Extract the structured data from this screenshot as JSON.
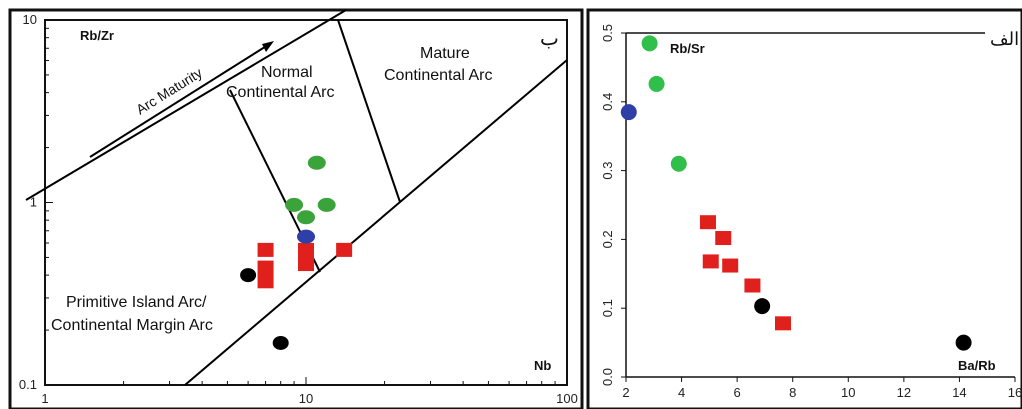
{
  "colors": {
    "red": "#e0201c",
    "green": "#3aa43a",
    "green_light": "#2fbf4a",
    "blue": "#2e3fa8",
    "black": "#000000",
    "frame": "#111111"
  },
  "chart_data": [
    {
      "type": "scatter",
      "panel_label": "ب",
      "x_scale": "log",
      "y_scale": "log",
      "xlim": [
        1,
        100
      ],
      "ylim": [
        0.1,
        10
      ],
      "xlabel": "Nb",
      "ylabel": "Rb/Zr",
      "x_tick_labels": [
        "1",
        "10",
        "100"
      ],
      "y_tick_labels": [
        "0.1",
        "1",
        "10"
      ],
      "field_labels": {
        "normal_1": "Normal",
        "normal_2": "Continental Arc",
        "mature_1": "Mature",
        "mature_2": "Continental Arc",
        "primitive_1": "Primitive Island Arc/",
        "primitive_2": "Continental Margin Arc",
        "arrow": "Arc Maturity"
      },
      "series": [
        {
          "marker": "square",
          "color": "red",
          "points": [
            [
              7,
              0.55
            ],
            [
              7,
              0.44
            ],
            [
              7,
              0.37
            ],
            [
              10,
              0.55
            ],
            [
              10,
              0.5
            ],
            [
              10,
              0.46
            ],
            [
              14,
              0.55
            ]
          ]
        },
        {
          "marker": "ellipse",
          "color": "green",
          "points": [
            [
              11,
              1.65
            ],
            [
              9,
              0.97
            ],
            [
              10,
              0.83
            ],
            [
              12,
              0.97
            ]
          ]
        },
        {
          "marker": "ellipse",
          "color": "blue",
          "points": [
            [
              10,
              0.65
            ]
          ]
        },
        {
          "marker": "circle",
          "color": "black",
          "points": [
            [
              6,
              0.4
            ],
            [
              8,
              0.17
            ]
          ]
        }
      ]
    },
    {
      "type": "scatter",
      "panel_label": "الف",
      "xlim": [
        2,
        16
      ],
      "ylim": [
        0,
        0.5
      ],
      "xlabel": "Ba/Rb",
      "ylabel": "Rb/Sr",
      "x_ticks": [
        2,
        4,
        6,
        8,
        10,
        12,
        14,
        16
      ],
      "y_ticks": [
        0.0,
        0.1,
        0.2,
        0.3,
        0.4,
        0.5
      ],
      "x_tick_labels": [
        "2",
        "4",
        "6",
        "8",
        "10",
        "12",
        "14",
        "16"
      ],
      "y_tick_labels": [
        "0.0",
        "0.1",
        "0.2",
        "0.3",
        "0.4",
        "0.5"
      ],
      "series": [
        {
          "marker": "square",
          "color": "red",
          "points": [
            [
              4.95,
              0.225
            ],
            [
              5.5,
              0.202
            ],
            [
              5.05,
              0.168
            ],
            [
              5.75,
              0.162
            ],
            [
              6.55,
              0.133
            ],
            [
              7.65,
              0.078
            ]
          ]
        },
        {
          "marker": "circle",
          "color": "green_light",
          "points": [
            [
              2.85,
              0.485
            ],
            [
              3.1,
              0.426
            ],
            [
              3.9,
              0.31
            ]
          ]
        },
        {
          "marker": "circle",
          "color": "blue",
          "points": [
            [
              2.1,
              0.385
            ]
          ]
        },
        {
          "marker": "circle",
          "color": "black",
          "points": [
            [
              6.9,
              0.103
            ],
            [
              14.15,
              0.05
            ]
          ]
        }
      ]
    }
  ]
}
